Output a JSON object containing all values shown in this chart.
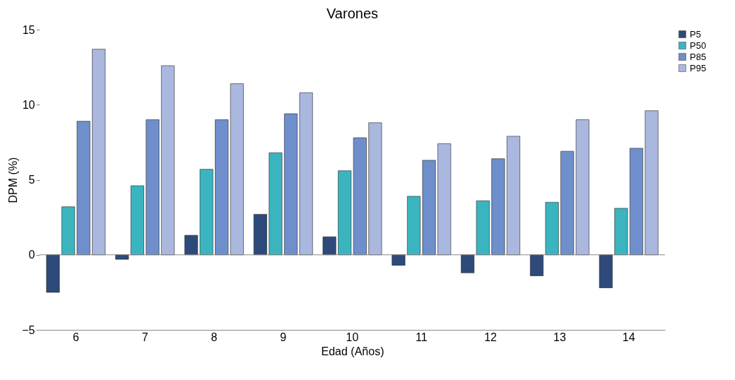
{
  "chart_data": {
    "type": "bar",
    "title": "Varones",
    "xlabel": "Edad (Años)",
    "ylabel": "DPM (%)",
    "categories": [
      "6",
      "7",
      "8",
      "9",
      "10",
      "11",
      "12",
      "13",
      "14"
    ],
    "series": [
      {
        "name": "P5",
        "color": "#2e4a7a",
        "values": [
          -2.5,
          -0.3,
          1.3,
          2.7,
          1.2,
          -0.7,
          -1.2,
          -1.4,
          -2.2
        ]
      },
      {
        "name": "P50",
        "color": "#3ab5c0",
        "values": [
          3.2,
          4.6,
          5.7,
          6.8,
          5.6,
          3.9,
          3.6,
          3.5,
          3.1
        ]
      },
      {
        "name": "P85",
        "color": "#6e8fcc",
        "values": [
          8.9,
          9.0,
          9.0,
          9.4,
          7.8,
          6.3,
          6.4,
          6.9,
          7.1
        ]
      },
      {
        "name": "P95",
        "color": "#aab8e0",
        "values": [
          13.7,
          12.6,
          11.4,
          10.8,
          8.8,
          7.4,
          7.9,
          9.0,
          9.6
        ]
      }
    ],
    "ref_lines": [
      {
        "axis": "y",
        "value": 0,
        "color": "#888888"
      }
    ],
    "ylim": [
      -5,
      15
    ],
    "yticks": [
      -5,
      0,
      5,
      10,
      15
    ],
    "grid": false,
    "legend": "right"
  }
}
